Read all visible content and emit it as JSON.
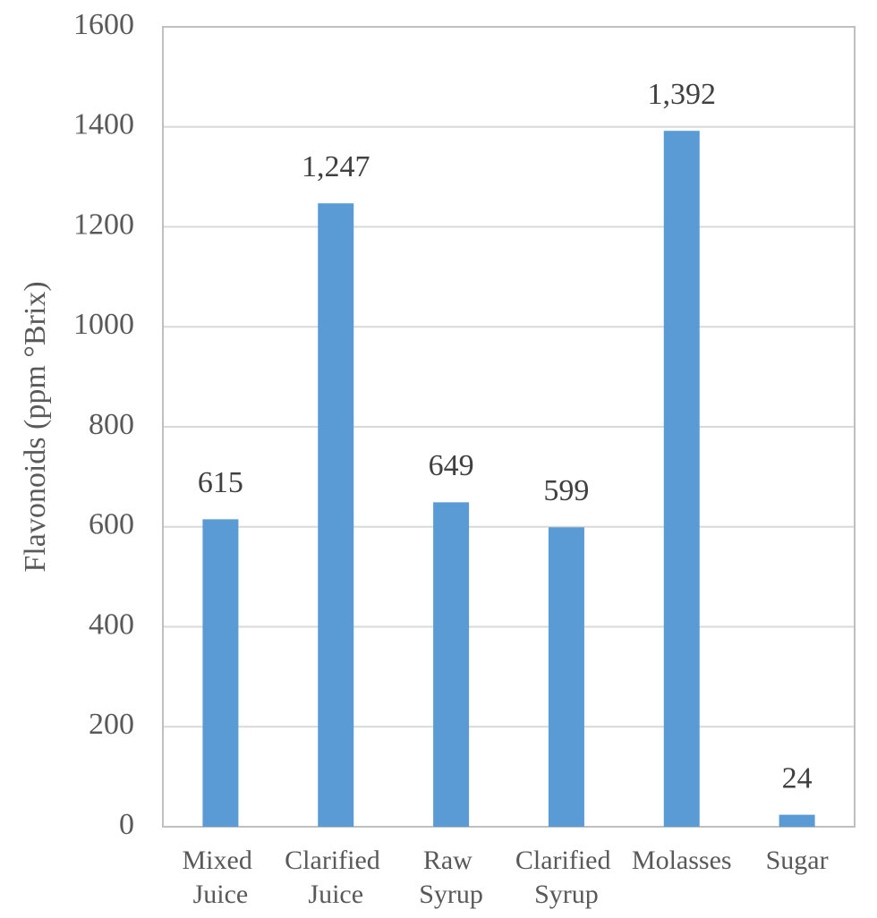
{
  "chart_data": {
    "type": "bar",
    "y_label": "Flavonoids (ppm °Brix)",
    "categories": [
      "Mixed Juice",
      "Clarified Juice",
      "Raw Syrup",
      "Clarified Syrup",
      "Molasses",
      "Sugar"
    ],
    "values": [
      615,
      1247,
      649,
      599,
      1392,
      24
    ],
    "value_labels": [
      "615",
      "1,247",
      "649",
      "599",
      "1,392",
      "24"
    ],
    "color": "#5b9bd5",
    "ylim": [
      0,
      1600
    ],
    "yticks": [
      0,
      200,
      400,
      600,
      800,
      1000,
      1200,
      1400,
      1600
    ],
    "grid": true
  }
}
